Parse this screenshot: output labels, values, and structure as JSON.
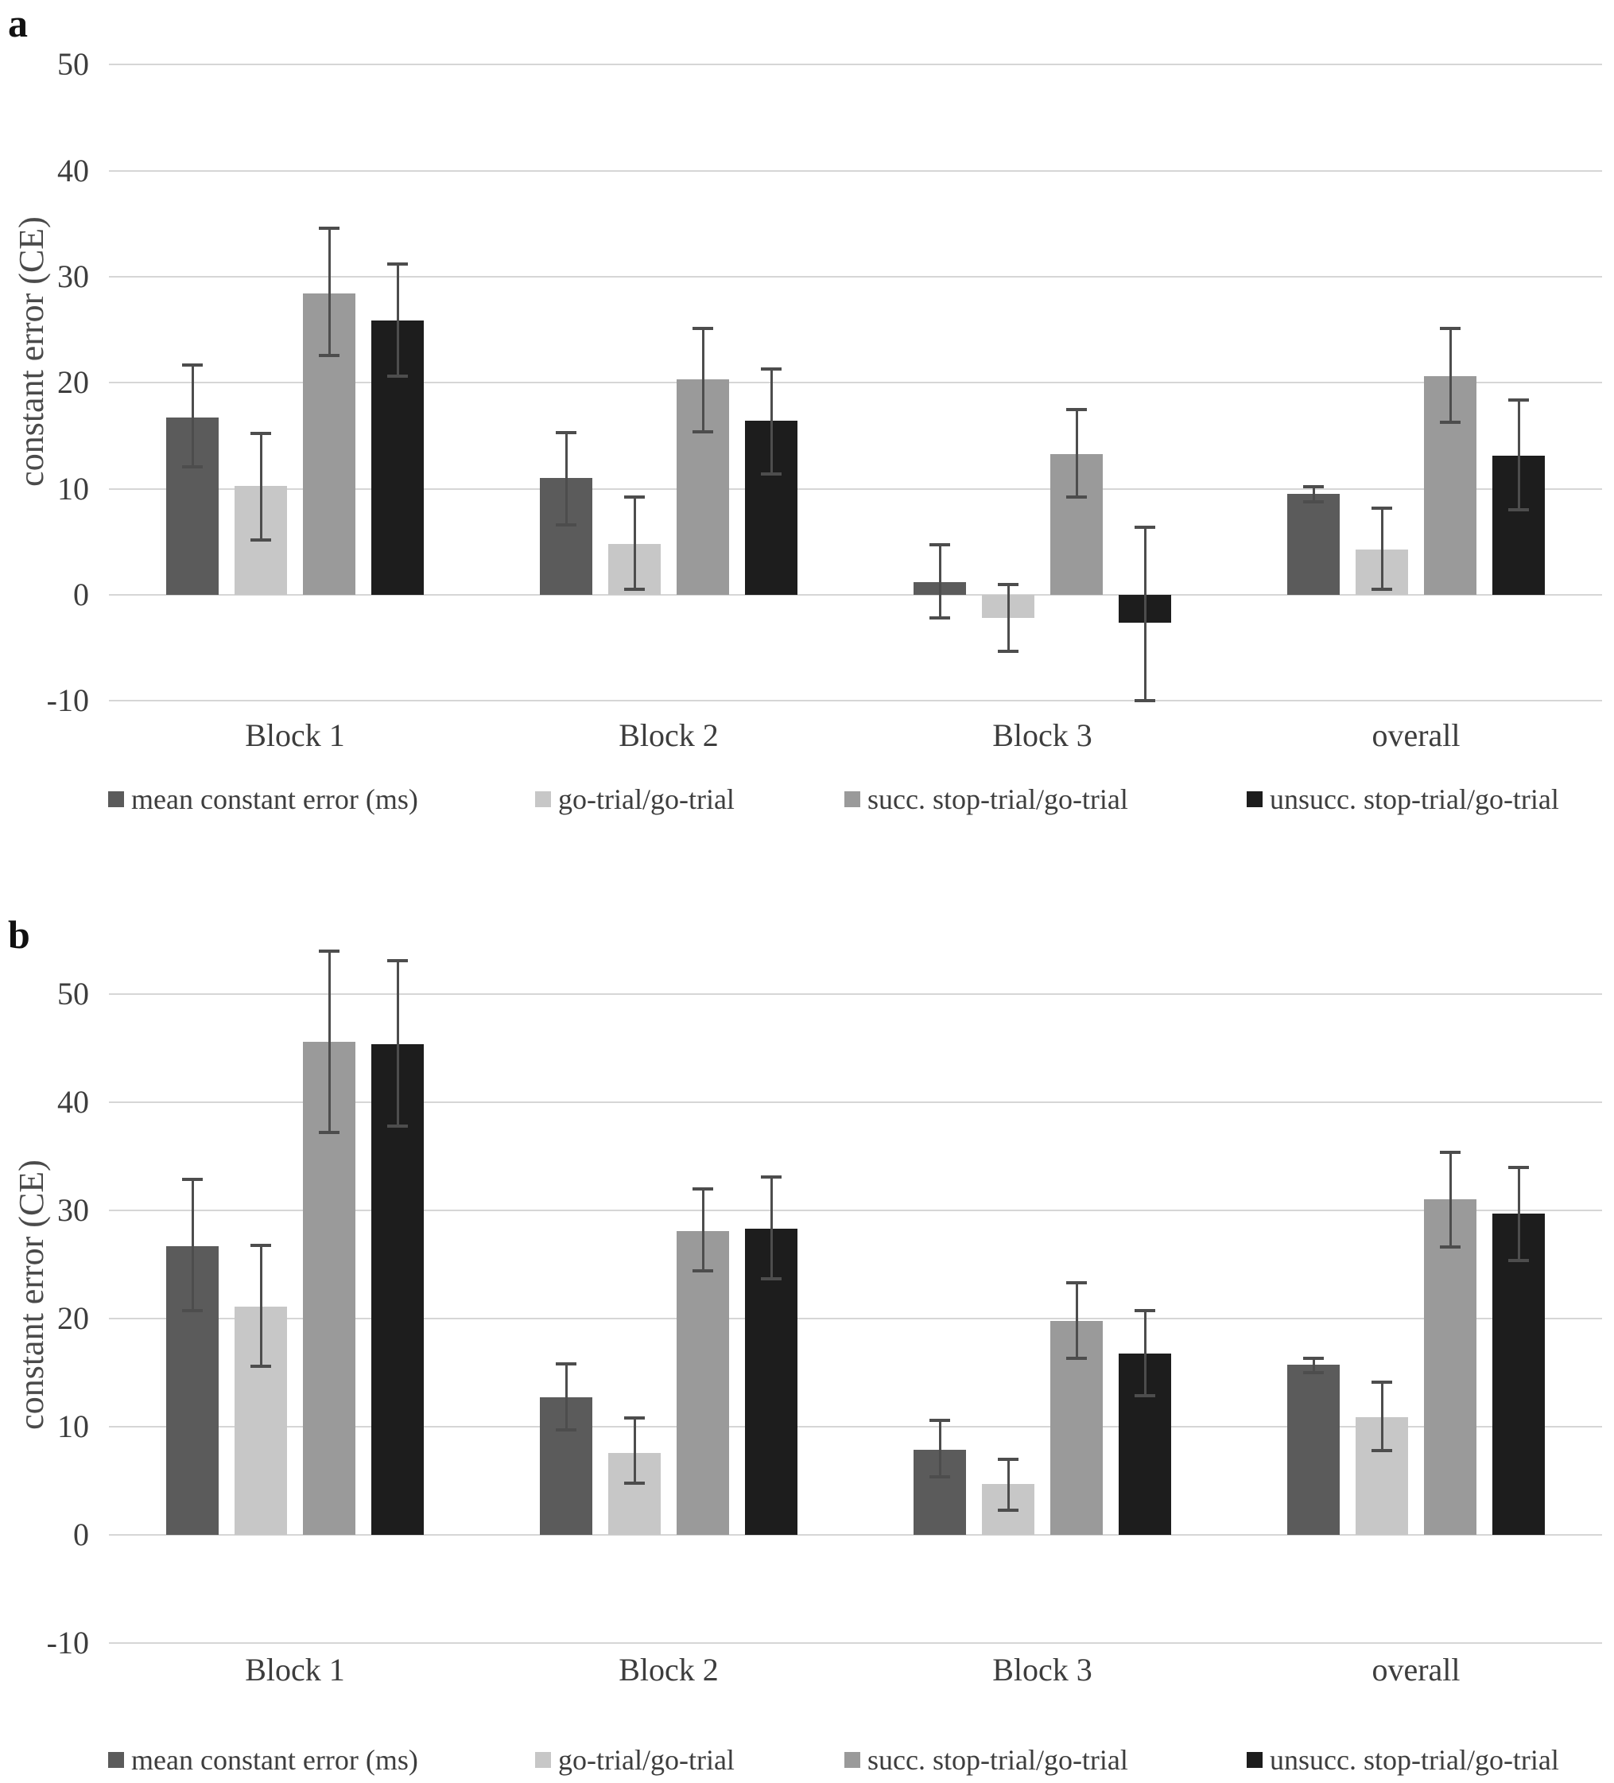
{
  "figure": {
    "panel_a_label": "a",
    "panel_b_label": "b",
    "y_axis_title": "constant error (CE)"
  },
  "chart_data": [
    {
      "panel_label": "a",
      "type": "bar",
      "title": "",
      "xlabel": "",
      "ylabel": "constant error (CE)",
      "ylim": [
        -10,
        50
      ],
      "yticks": [
        50,
        40,
        30,
        20,
        10,
        0,
        -10
      ],
      "grid": true,
      "legend_position": "bottom",
      "categories": [
        "Block 1",
        "Block 2",
        "Block 3",
        "overall"
      ],
      "series": [
        {
          "name": "mean constant error (ms)",
          "color": "#5b5b5b",
          "values": [
            16.7,
            11.0,
            1.2,
            9.5
          ],
          "err_lo": [
            12.1,
            6.6,
            -2.2,
            8.8
          ],
          "err_hi": [
            21.7,
            15.3,
            4.7,
            10.2
          ]
        },
        {
          "name": "go-trial/go-trial",
          "color": "#c7c7c7",
          "values": [
            10.3,
            4.8,
            -2.2,
            4.3
          ],
          "err_lo": [
            5.2,
            0.5,
            -5.3,
            0.5
          ],
          "err_hi": [
            15.2,
            9.2,
            1.0,
            8.2
          ]
        },
        {
          "name": "succ. stop-trial/go-trial",
          "color": "#9a9a9a",
          "values": [
            28.4,
            20.3,
            13.3,
            20.6
          ],
          "err_lo": [
            22.6,
            15.4,
            9.2,
            16.3
          ],
          "err_hi": [
            34.6,
            25.1,
            17.5,
            25.1
          ]
        },
        {
          "name": "unsucc. stop-trial/go-trial",
          "color": "#1d1d1d",
          "values": [
            25.9,
            16.4,
            -2.6,
            13.1
          ],
          "err_lo": [
            20.6,
            11.4,
            -10.0,
            8.0
          ],
          "err_hi": [
            31.2,
            21.3,
            6.4,
            18.4
          ]
        }
      ]
    },
    {
      "panel_label": "b",
      "type": "bar",
      "title": "",
      "xlabel": "",
      "ylabel": "constant error (CE)",
      "ylim": [
        -10,
        50
      ],
      "yticks": [
        50,
        40,
        30,
        20,
        10,
        0,
        -10
      ],
      "grid": true,
      "legend_position": "bottom",
      "categories": [
        "Block 1",
        "Block 2",
        "Block 3",
        "overall"
      ],
      "series": [
        {
          "name": "mean constant error (ms)",
          "color": "#5b5b5b",
          "values": [
            26.7,
            12.7,
            7.9,
            15.7
          ],
          "err_lo": [
            20.7,
            9.7,
            5.4,
            15.0
          ],
          "err_hi": [
            32.9,
            15.8,
            10.6,
            16.3
          ]
        },
        {
          "name": "go-trial/go-trial",
          "color": "#c7c7c7",
          "values": [
            21.1,
            7.6,
            4.7,
            10.9
          ],
          "err_lo": [
            15.6,
            4.8,
            2.3,
            7.8
          ],
          "err_hi": [
            26.8,
            10.8,
            7.0,
            14.1
          ]
        },
        {
          "name": "succ. stop-trial/go-trial",
          "color": "#9a9a9a",
          "values": [
            45.6,
            28.1,
            19.8,
            31.0
          ],
          "err_lo": [
            37.2,
            24.4,
            16.3,
            26.6
          ],
          "err_hi": [
            54.0,
            32.0,
            23.3,
            35.4
          ]
        },
        {
          "name": "unsucc. stop-trial/go-trial",
          "color": "#1d1d1d",
          "values": [
            45.4,
            28.3,
            16.8,
            29.7
          ],
          "err_lo": [
            37.8,
            23.7,
            12.9,
            25.4
          ],
          "err_hi": [
            53.1,
            33.1,
            20.7,
            34.0
          ]
        }
      ]
    }
  ]
}
